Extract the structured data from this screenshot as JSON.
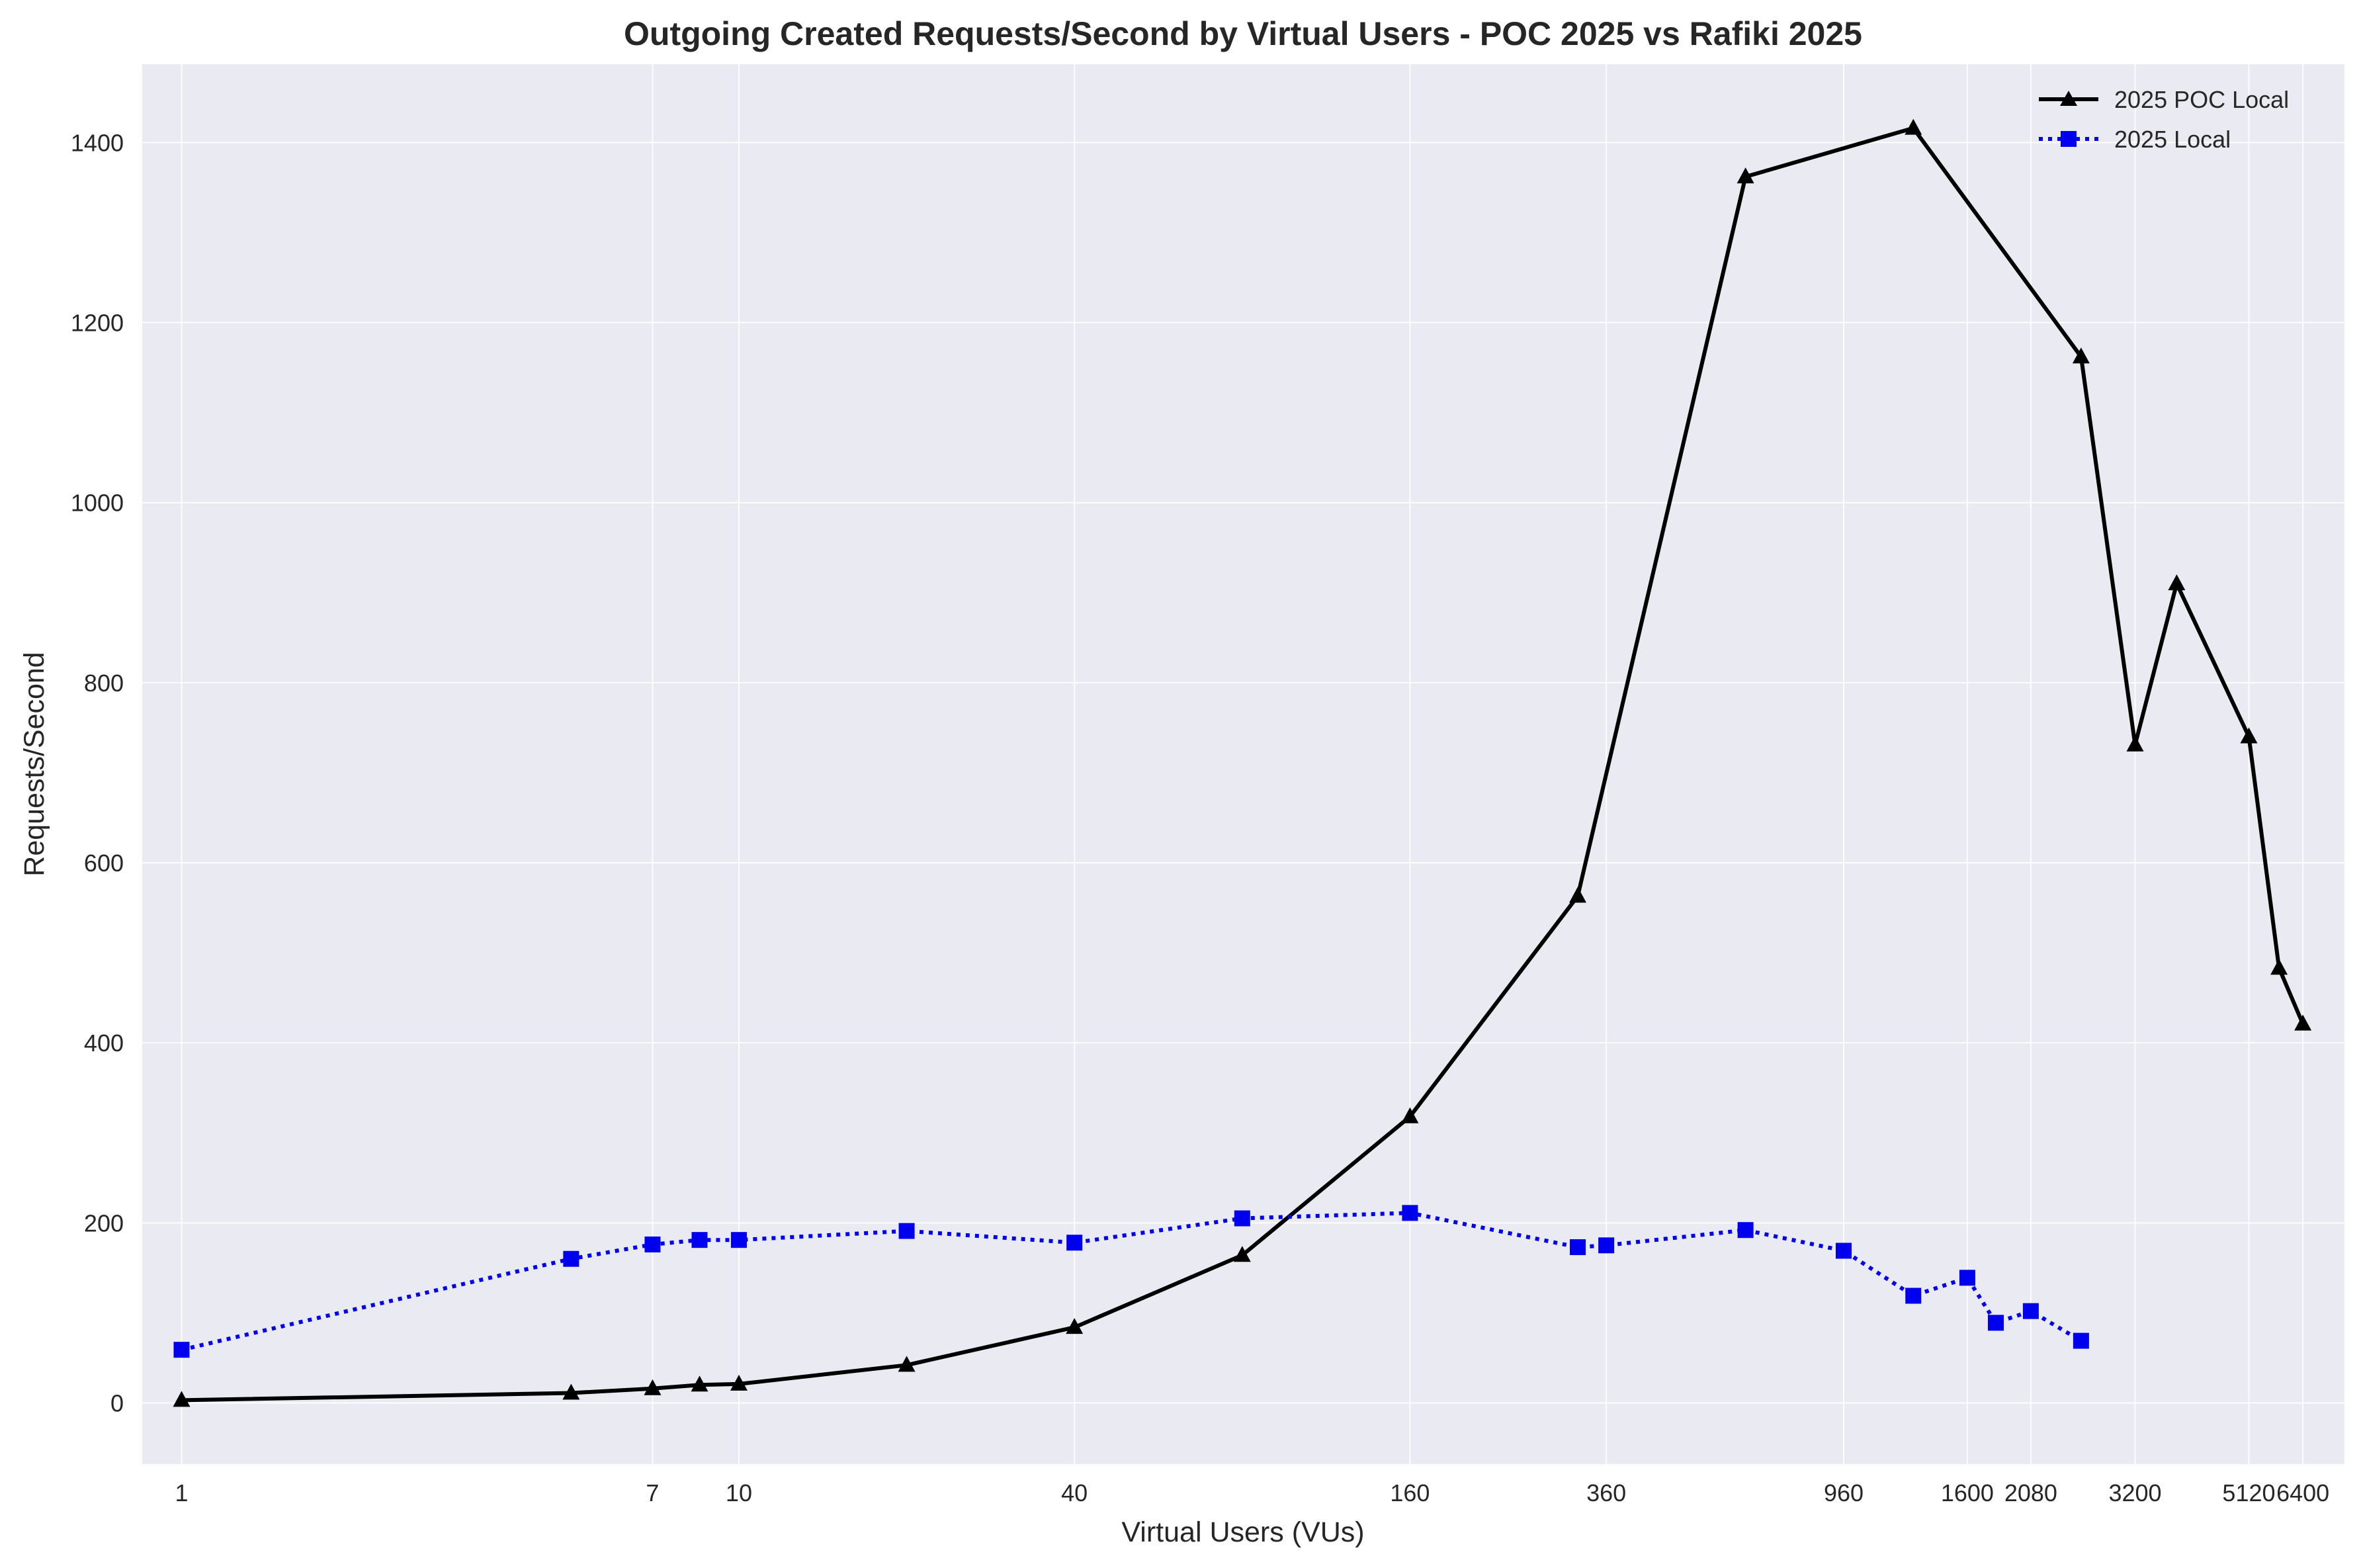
{
  "chart_data": {
    "type": "line",
    "title": "Outgoing Created Requests/Second by Virtual Users - POC 2025 vs Rafiki 2025",
    "xlabel": "Virtual Users (VUs)",
    "ylabel": "Requests/Second",
    "x_scale": "log",
    "xlim": [
      0.85,
      7600
    ],
    "ylim": [
      -68,
      1487
    ],
    "x_ticks": [
      1,
      7,
      10,
      40,
      160,
      360,
      960,
      1600,
      2080,
      3200,
      5120,
      6400
    ],
    "y_ticks": [
      0,
      200,
      400,
      600,
      800,
      1000,
      1200,
      1400
    ],
    "grid": true,
    "legend_position": "top-right",
    "series": [
      {
        "name": "2025 POC Local",
        "color": "#000000",
        "line_style": "solid",
        "marker": "triangle",
        "x": [
          1,
          5,
          7,
          8.5,
          10,
          20,
          40,
          80,
          160,
          320,
          640,
          1280,
          2560,
          3200,
          3800,
          5120,
          5800,
          6400
        ],
        "y": [
          3,
          11,
          16,
          20,
          21,
          42,
          84,
          164,
          318,
          563,
          1362,
          1416,
          1162,
          731,
          910,
          740,
          483,
          421
        ]
      },
      {
        "name": "2025 Local",
        "color": "#0000ee",
        "line_style": "dotted",
        "marker": "square",
        "x": [
          1,
          5,
          7,
          8.5,
          10,
          20,
          40,
          80,
          160,
          320,
          360,
          640,
          960,
          1280,
          1600,
          1800,
          2080,
          2560
        ],
        "y": [
          59,
          160,
          176,
          181,
          181,
          191,
          178,
          205,
          211,
          173,
          175,
          192,
          169,
          119,
          139,
          89,
          102,
          69
        ]
      }
    ]
  }
}
